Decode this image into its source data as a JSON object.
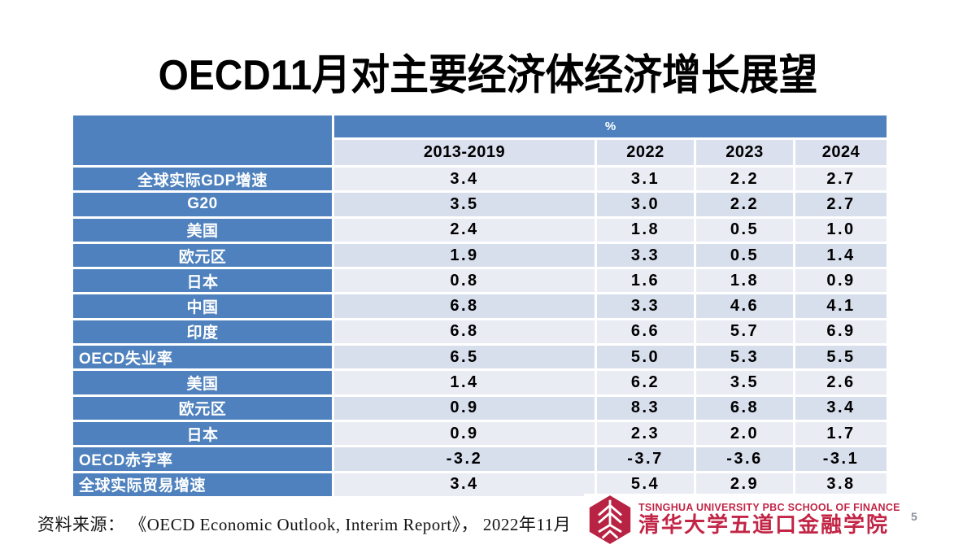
{
  "slide": {
    "title": "OECD11月对主要经济体经济增长展望",
    "page_number": "5"
  },
  "colors": {
    "header_blue": "#4E81BD",
    "year_header_bg": "#DBE0EE",
    "row_light": "#EAECF4",
    "row_medium": "#D7DEEC",
    "logo_crimson": "#C22546"
  },
  "table": {
    "unit_header": "%",
    "year_columns": [
      "2013-2019",
      "2022",
      "2023",
      "2024"
    ],
    "rows": [
      {
        "label": "全球实际GDP增速",
        "align": "center",
        "values": [
          "3.4",
          "3.1",
          "2.2",
          "2.7"
        ]
      },
      {
        "label": "G20",
        "align": "center",
        "values": [
          "3.5",
          "3.0",
          "2.2",
          "2.7"
        ]
      },
      {
        "label": "美国",
        "align": "center",
        "values": [
          "2.4",
          "1.8",
          "0.5",
          "1.0"
        ]
      },
      {
        "label": "欧元区",
        "align": "center",
        "values": [
          "1.9",
          "3.3",
          "0.5",
          "1.4"
        ]
      },
      {
        "label": "日本",
        "align": "center",
        "values": [
          "0.8",
          "1.6",
          "1.8",
          "0.9"
        ]
      },
      {
        "label": "中国",
        "align": "center",
        "values": [
          "6.8",
          "3.3",
          "4.6",
          "4.1"
        ]
      },
      {
        "label": "印度",
        "align": "center",
        "values": [
          "6.8",
          "6.6",
          "5.7",
          "6.9"
        ]
      },
      {
        "label": "OECD失业率",
        "align": "left",
        "values": [
          "6.5",
          "5.0",
          "5.3",
          "5.5"
        ]
      },
      {
        "label": "美国",
        "align": "center",
        "values": [
          "1.4",
          "6.2",
          "3.5",
          "2.6"
        ]
      },
      {
        "label": "欧元区",
        "align": "center",
        "values": [
          "0.9",
          "8.3",
          "6.8",
          "3.4"
        ]
      },
      {
        "label": "日本",
        "align": "center",
        "values": [
          "0.9",
          "2.3",
          "2.0",
          "1.7"
        ]
      },
      {
        "label": "OECD赤字率",
        "align": "left",
        "values": [
          "-3.2",
          "-3.7",
          "-3.6",
          "-3.1"
        ]
      },
      {
        "label": "全球实际贸易增速",
        "align": "left",
        "values": [
          "3.4",
          "5.4",
          "2.9",
          "3.8"
        ]
      }
    ]
  },
  "footer": {
    "source": "资料来源： 《OECD Economic Outlook, Interim Report》， 2022年11月",
    "logo": {
      "name_en": "TSINGHUA UNIVERSITY PBC SCHOOL OF FINANCE",
      "name_cn": "清华大学五道口金融学院"
    }
  }
}
